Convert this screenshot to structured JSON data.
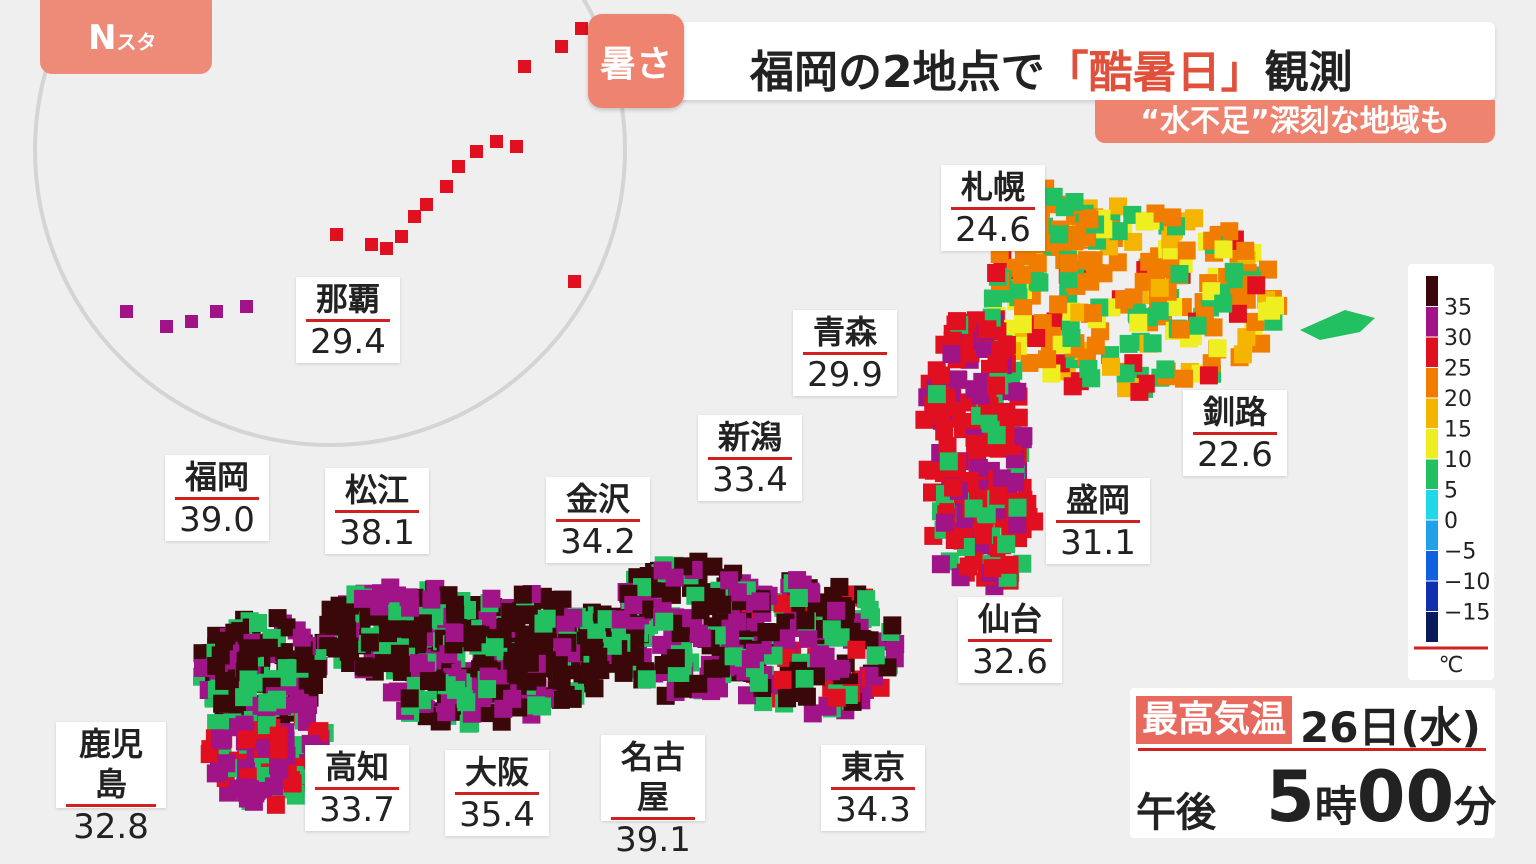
{
  "logo": {
    "main": "N",
    "sub": "スタ"
  },
  "header": {
    "tag": "暑さ",
    "title_parts": [
      "福岡の2地点で",
      "「酷暑日」",
      "観測"
    ],
    "subtitle": "“水不足”深刻な地域も"
  },
  "cities": [
    {
      "name": "札幌",
      "temp": "24.6"
    },
    {
      "name": "青森",
      "temp": "29.9"
    },
    {
      "name": "那覇",
      "temp": "29.4"
    },
    {
      "name": "釧路",
      "temp": "22.6"
    },
    {
      "name": "新潟",
      "temp": "33.4"
    },
    {
      "name": "盛岡",
      "temp": "31.1"
    },
    {
      "name": "福岡",
      "temp": "39.0"
    },
    {
      "name": "松江",
      "temp": "38.1"
    },
    {
      "name": "金沢",
      "temp": "34.2"
    },
    {
      "name": "仙台",
      "temp": "32.6"
    },
    {
      "name": "鹿児島",
      "temp": "32.8"
    },
    {
      "name": "高知",
      "temp": "33.7"
    },
    {
      "name": "大阪",
      "temp": "35.4"
    },
    {
      "name": "名古屋",
      "temp": "39.1"
    },
    {
      "name": "東京",
      "temp": "34.3"
    }
  ],
  "legend": {
    "ticks": [
      35,
      30,
      25,
      20,
      15,
      10,
      5,
      0,
      {
        "value": -5,
        "label": "−5"
      },
      {
        "value": -10,
        "label": "−10"
      },
      {
        "value": -15,
        "label": "−15"
      }
    ],
    "unit": "℃",
    "colors": [
      "#3a0808",
      "#a01488",
      "#e01020",
      "#f07c00",
      "#f5b400",
      "#eeee20",
      "#22c060",
      "#22d8e8",
      "#22a0e8",
      "#1060e0",
      "#1030b0",
      "#0a1a5a"
    ]
  },
  "info": {
    "label": "最高気温",
    "date": "26日(水)",
    "prefix": "午後",
    "hour": "5",
    "hour_unit": "時",
    "minute": "00",
    "minute_unit": "分"
  }
}
